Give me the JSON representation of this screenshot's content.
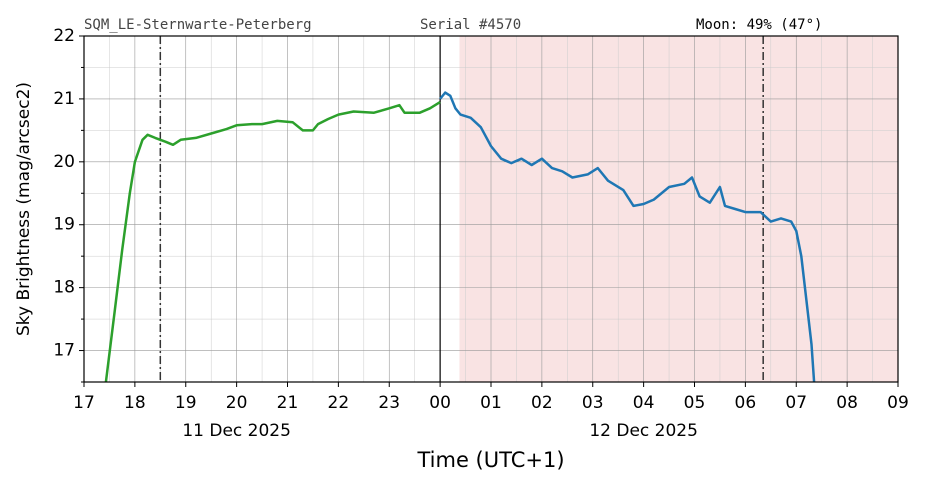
{
  "chart_data": {
    "type": "line",
    "header": [
      "SQM_LE-Sternwarte-Peterberg",
      "Serial #4570"
    ],
    "moon": "Moon: 49% (47°)",
    "ylabel": "Sky Brightness (mag/arcsec2)",
    "xlabel": "Time (UTC+1)",
    "xlim": [
      17,
      33
    ],
    "ylim": [
      16.5,
      22
    ],
    "xticks": [
      17,
      18,
      19,
      20,
      21,
      22,
      23,
      {
        "value": 24,
        "label": "00"
      },
      {
        "value": 25,
        "label": "01"
      },
      {
        "value": 26,
        "label": "02"
      },
      {
        "value": 27,
        "label": "03"
      },
      {
        "value": 28,
        "label": "04"
      },
      {
        "value": 29,
        "label": "05"
      },
      {
        "value": 30,
        "label": "06"
      },
      {
        "value": 31,
        "label": "07"
      },
      {
        "value": 32,
        "label": "08"
      },
      {
        "value": 33,
        "label": "09"
      }
    ],
    "xminor": [
      17.5,
      18.5,
      19.5,
      20.5,
      21.5,
      22.5,
      23.5,
      24.5,
      25.5,
      26.5,
      27.5,
      28.5,
      29.5,
      30.5,
      31.5,
      32.5
    ],
    "yticks": [
      17,
      18,
      19,
      20,
      21,
      22
    ],
    "yminor": [
      16.5,
      17.5,
      18.5,
      19.5,
      20.5,
      21.5
    ],
    "grid": true,
    "date_labels": [
      {
        "text": "11 Dec 2025",
        "x": 20
      },
      {
        "text": "12 Dec 2025",
        "x": 28
      }
    ],
    "shaded_span": [
      24.38,
      33
    ],
    "shade_color": "#f9e3e3",
    "midnight": 24,
    "dashdot_lines": [
      18.5,
      30.35
    ],
    "series": [
      {
        "color": "#2ca02c",
        "x": [
          17.43,
          17.6,
          17.75,
          17.9,
          18.0,
          18.15,
          18.25,
          18.4,
          18.6,
          18.75,
          18.9,
          19.2,
          19.5,
          19.8,
          20.0,
          20.3,
          20.5,
          20.8,
          21.1,
          21.3,
          21.5,
          21.6,
          21.8,
          22.0,
          22.3,
          22.7,
          23.0,
          23.2,
          23.3,
          23.6,
          23.8,
          24.0
        ],
        "values": [
          16.5,
          17.6,
          18.6,
          19.5,
          20.0,
          20.35,
          20.43,
          20.38,
          20.32,
          20.27,
          20.35,
          20.38,
          20.45,
          20.52,
          20.58,
          20.6,
          20.6,
          20.65,
          20.63,
          20.5,
          20.5,
          20.6,
          20.68,
          20.75,
          20.8,
          20.78,
          20.85,
          20.9,
          20.78,
          20.78,
          20.85,
          20.95
        ]
      },
      {
        "color": "#1f77b4",
        "x": [
          24.0,
          24.1,
          24.2,
          24.3,
          24.4,
          24.6,
          24.8,
          25.0,
          25.2,
          25.4,
          25.6,
          25.8,
          26.0,
          26.2,
          26.4,
          26.6,
          26.9,
          27.1,
          27.3,
          27.6,
          27.8,
          28.0,
          28.2,
          28.5,
          28.8,
          28.95,
          29.1,
          29.3,
          29.5,
          29.6,
          29.8,
          30.0,
          30.3,
          30.5,
          30.7,
          30.9,
          31.0,
          31.1,
          31.2,
          31.3,
          31.35
        ],
        "values": [
          21.0,
          21.1,
          21.05,
          20.85,
          20.75,
          20.7,
          20.55,
          20.25,
          20.05,
          19.98,
          20.05,
          19.95,
          20.05,
          19.9,
          19.85,
          19.75,
          19.8,
          19.9,
          19.7,
          19.55,
          19.3,
          19.33,
          19.4,
          19.6,
          19.65,
          19.75,
          19.45,
          19.35,
          19.6,
          19.3,
          19.25,
          19.2,
          19.2,
          19.05,
          19.1,
          19.05,
          18.9,
          18.5,
          17.8,
          17.1,
          16.5
        ]
      }
    ]
  }
}
